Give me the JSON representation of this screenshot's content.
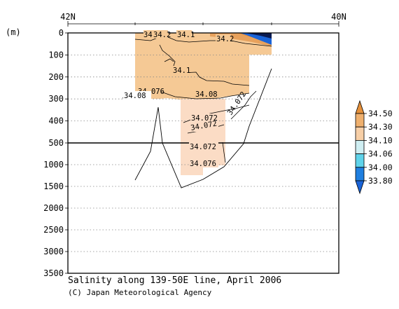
{
  "chart_data": {
    "type": "contour-section",
    "title": "Salinity along 139-50E line, April 2006",
    "credit": "(C) Japan Meteorological Agency",
    "y_unit": "(m)",
    "x_ticks": [
      "42N",
      "40N"
    ],
    "y_ticks": [
      "0",
      "100",
      "200",
      "300",
      "400",
      "500",
      "1000",
      "1500",
      "2000",
      "2500",
      "3000",
      "3500"
    ],
    "y_axis": "depth, piecewise: 0-500 m upper panel, 500-3500 m lower panel",
    "grid": "dotted horizontal lines at every depth tick",
    "contour_labels": [
      "34.2",
      "34.1",
      "34.2",
      "34.2",
      "34.1",
      "34.08",
      "34.076",
      "34.08",
      "34.072",
      "34.072",
      "34.072",
      "34.076"
    ],
    "colorbar": {
      "levels": [
        "34.50",
        "34.30",
        "34.10",
        "34.06",
        "34.00",
        "33.80"
      ],
      "colors": [
        "#e5903a",
        "#efb06e",
        "#f7cfa7",
        "#cfeef2",
        "#5fd3ea",
        "#1f7fe0",
        "#1a64d8"
      ]
    }
  }
}
